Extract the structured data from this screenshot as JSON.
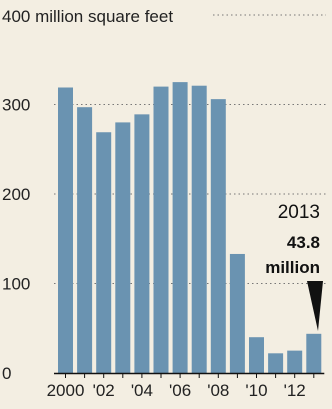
{
  "chart_data": {
    "type": "bar",
    "categories": [
      "2000",
      "2001",
      "2002",
      "2003",
      "2004",
      "2005",
      "2006",
      "2007",
      "2008",
      "2009",
      "2010",
      "2011",
      "2012",
      "2013"
    ],
    "x_tick_labels": [
      "2000",
      "",
      "'02",
      "",
      "'04",
      "",
      "'06",
      "",
      "'08",
      "",
      "'10",
      "",
      "'12",
      ""
    ],
    "values": [
      319,
      297,
      269,
      280,
      289,
      320,
      325,
      321,
      306,
      133,
      40,
      22,
      25,
      43.8
    ],
    "ylabel": "400 million square feet",
    "y_ticks": [
      0,
      100,
      200,
      300
    ],
    "y_tick_labels": [
      "0",
      "100",
      "200",
      "300"
    ],
    "ylim": [
      0,
      400
    ],
    "grid": "dotted",
    "bar_color": "#6a93b1",
    "annotation": {
      "year": "2013",
      "value": "43.8",
      "unit": "million"
    }
  }
}
